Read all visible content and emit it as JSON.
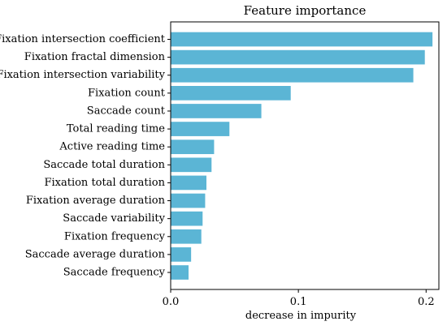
{
  "chart_data": {
    "type": "bar",
    "orientation": "horizontal",
    "title": "Feature importance",
    "xlabel": "decrease in impurity",
    "ylabel": "",
    "xlim": [
      0,
      0.21
    ],
    "xticks": [
      0.0,
      0.1,
      0.2
    ],
    "xtick_labels": [
      "0.0",
      "0.1",
      "0.2"
    ],
    "grid": false,
    "bar_color": "#5bb5d5",
    "categories": [
      "Fixation intersection coefficient",
      "Fixation fractal dimension",
      "Fixation intersection variability",
      "Fixation count",
      "Saccade count",
      "Total reading time",
      "Active reading time",
      "Saccade total duration",
      "Fixation total duration",
      "Fixation average duration",
      "Saccade variability",
      "Fixation frequency",
      "Saccade average duration",
      "Saccade frequency"
    ],
    "values": [
      0.205,
      0.199,
      0.19,
      0.094,
      0.071,
      0.046,
      0.034,
      0.032,
      0.028,
      0.027,
      0.025,
      0.024,
      0.016,
      0.014
    ]
  }
}
